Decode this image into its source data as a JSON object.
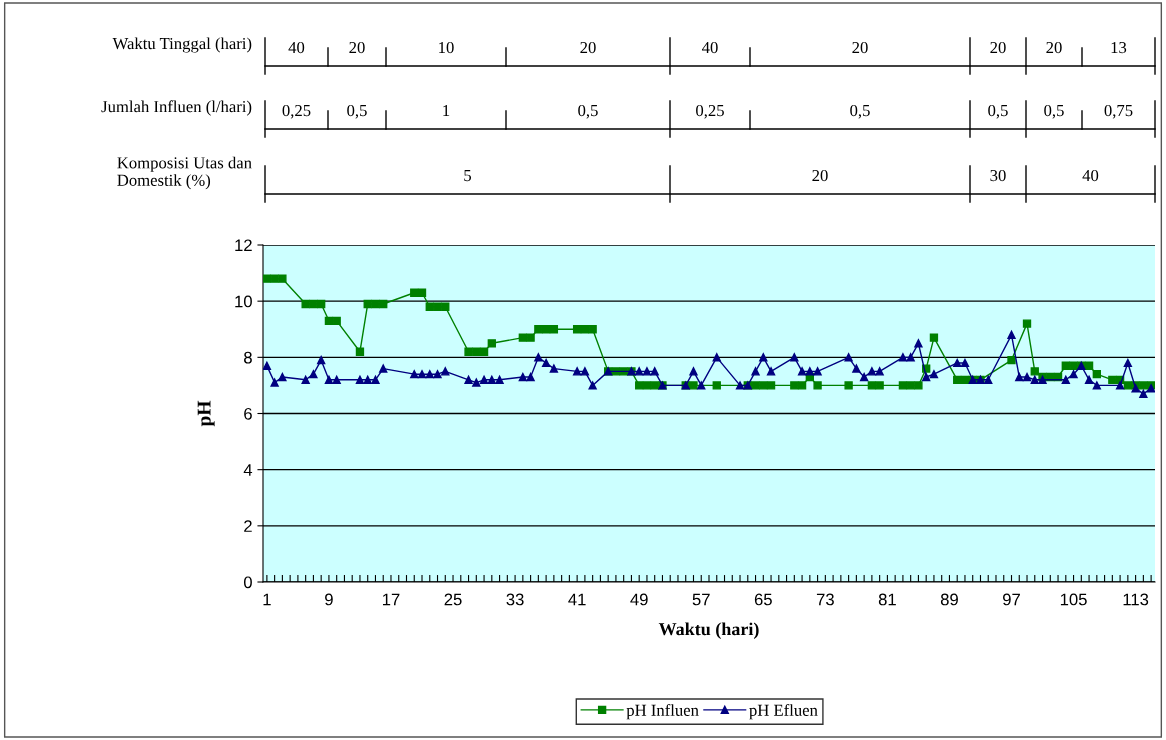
{
  "chart_data": {
    "type": "line",
    "xlabel": "Waktu (hari)",
    "ylabel": "pH",
    "categories": [
      "1",
      null,
      null,
      null,
      null,
      null,
      null,
      null,
      "9",
      null,
      null,
      null,
      null,
      null,
      null,
      null,
      "17",
      null,
      null,
      null,
      null,
      null,
      null,
      null,
      "25",
      null,
      null,
      null,
      null,
      null,
      null,
      null,
      "33",
      null,
      null,
      null,
      null,
      null,
      null,
      null,
      "41",
      null,
      null,
      null,
      null,
      null,
      null,
      null,
      "49",
      null,
      null,
      null,
      null,
      null,
      null,
      null,
      "57",
      null,
      null,
      null,
      null,
      null,
      null,
      null,
      "65",
      null,
      null,
      null,
      null,
      null,
      null,
      null,
      "73",
      null,
      null,
      null,
      null,
      null,
      null,
      null,
      "81",
      null,
      null,
      null,
      null,
      null,
      null,
      null,
      "89",
      null,
      null,
      null,
      null,
      null,
      null,
      null,
      "97",
      null,
      null,
      null,
      null,
      null,
      null,
      null,
      "105",
      null,
      null,
      null,
      null,
      null,
      null,
      null,
      "113",
      null,
      null
    ],
    "series": [
      {
        "name": "pH Influen",
        "color": "#008000",
        "marker": "square",
        "values": [
          10.8,
          10.8,
          10.8,
          null,
          null,
          9.9,
          9.9,
          9.9,
          9.3,
          9.3,
          null,
          null,
          8.2,
          9.9,
          9.9,
          9.9,
          null,
          null,
          null,
          10.3,
          10.3,
          9.8,
          9.8,
          9.8,
          null,
          null,
          8.2,
          8.2,
          8.2,
          8.5,
          null,
          null,
          null,
          8.7,
          8.7,
          9.0,
          9.0,
          9.0,
          null,
          null,
          9.0,
          9.0,
          9.0,
          null,
          7.5,
          7.5,
          7.5,
          7.5,
          7.0,
          7.0,
          7.0,
          7.0,
          null,
          null,
          7.0,
          7.0,
          null,
          null,
          7.0,
          null,
          null,
          null,
          7.0,
          7.0,
          7.0,
          7.0,
          null,
          null,
          7.0,
          7.0,
          7.3,
          7.0,
          null,
          null,
          null,
          7.0,
          null,
          null,
          7.0,
          7.0,
          null,
          null,
          7.0,
          7.0,
          7.0,
          7.6,
          8.7,
          null,
          null,
          7.2,
          7.2,
          7.2,
          7.2,
          null,
          null,
          null,
          7.9,
          null,
          9.2,
          7.5,
          7.3,
          7.3,
          7.3,
          7.7,
          7.7,
          7.7,
          7.7,
          7.4,
          null,
          7.2,
          7.2,
          7.0,
          7.0,
          7.0,
          7.0
        ]
      },
      {
        "name": "pH Efluen",
        "color": "#000080",
        "marker": "triangle",
        "values": [
          7.7,
          7.1,
          7.3,
          null,
          null,
          7.2,
          7.4,
          7.9,
          7.2,
          7.2,
          null,
          null,
          7.2,
          7.2,
          7.2,
          7.6,
          null,
          null,
          null,
          7.4,
          7.4,
          7.4,
          7.4,
          7.5,
          null,
          null,
          7.2,
          7.1,
          7.2,
          7.2,
          7.2,
          null,
          null,
          7.3,
          7.3,
          8.0,
          7.8,
          7.6,
          null,
          null,
          7.5,
          7.5,
          7.0,
          null,
          7.5,
          null,
          null,
          7.5,
          7.5,
          7.5,
          7.5,
          7.0,
          null,
          null,
          7.0,
          7.5,
          7.0,
          null,
          8.0,
          null,
          null,
          7.0,
          7.0,
          7.5,
          8.0,
          7.5,
          null,
          null,
          8.0,
          7.5,
          7.5,
          7.5,
          null,
          null,
          null,
          8.0,
          7.6,
          7.3,
          7.5,
          7.5,
          null,
          null,
          8.0,
          8.0,
          8.5,
          7.3,
          7.4,
          null,
          null,
          7.8,
          7.8,
          7.2,
          7.2,
          7.2,
          null,
          null,
          8.8,
          7.3,
          7.3,
          7.2,
          7.2,
          null,
          null,
          7.2,
          7.4,
          7.7,
          7.2,
          7.0,
          null,
          null,
          7.0,
          7.8,
          6.9,
          6.7,
          6.9
        ]
      }
    ],
    "ylim": [
      0,
      12
    ],
    "yticks": [
      0,
      2,
      4,
      6,
      8,
      10,
      12
    ],
    "grid": "y",
    "legend": "bottom",
    "line_style": "solid",
    "annotations": [
      "Waktu Tinggal (hari)",
      "40",
      "20",
      "10",
      "20",
      "40",
      "20",
      "20",
      "20",
      "13",
      "Jumlah Influen (l/hari)",
      "0,25",
      "0,5",
      "1",
      "0,5",
      "0,25",
      "0,5",
      "0,5",
      "0,5",
      "0,75",
      "Komposisi Utas dan\nDomestik (%)",
      "5",
      "20",
      "30",
      "40"
    ]
  }
}
